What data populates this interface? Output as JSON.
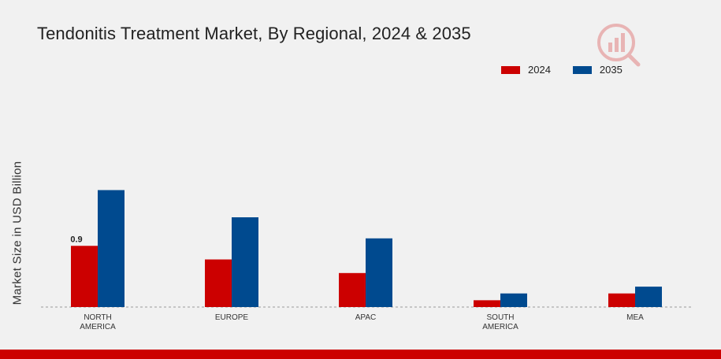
{
  "title": "Tendonitis Treatment Market, By Regional, 2024 & 2035",
  "colors": {
    "2024": "#cc0000",
    "2035": "#004a8f",
    "bottom_bar": "#cc0000"
  },
  "icons": {
    "logo": "brand-logo-icon"
  },
  "chart_data": {
    "type": "bar",
    "title": "Tendonitis Treatment Market, By Regional, 2024 & 2035",
    "xlabel": "",
    "ylabel": "Market Size in USD Billion",
    "categories": [
      [
        "NORTH",
        "AMERICA"
      ],
      [
        "EUROPE"
      ],
      [
        "APAC"
      ],
      [
        "SOUTH",
        "AMERICA"
      ],
      [
        "MEA"
      ]
    ],
    "series": [
      {
        "name": "2024",
        "color": "#cc0000",
        "values": [
          0.9,
          0.7,
          0.5,
          0.1,
          0.2
        ]
      },
      {
        "name": "2035",
        "color": "#004a8f",
        "values": [
          1.72,
          1.32,
          1.01,
          0.2,
          0.3
        ]
      }
    ],
    "data_labels": [
      {
        "series": 0,
        "index": 0,
        "text": "0.9"
      }
    ],
    "ylim": [
      0,
      2.2
    ],
    "legend_position": "top-right",
    "grid": false
  }
}
